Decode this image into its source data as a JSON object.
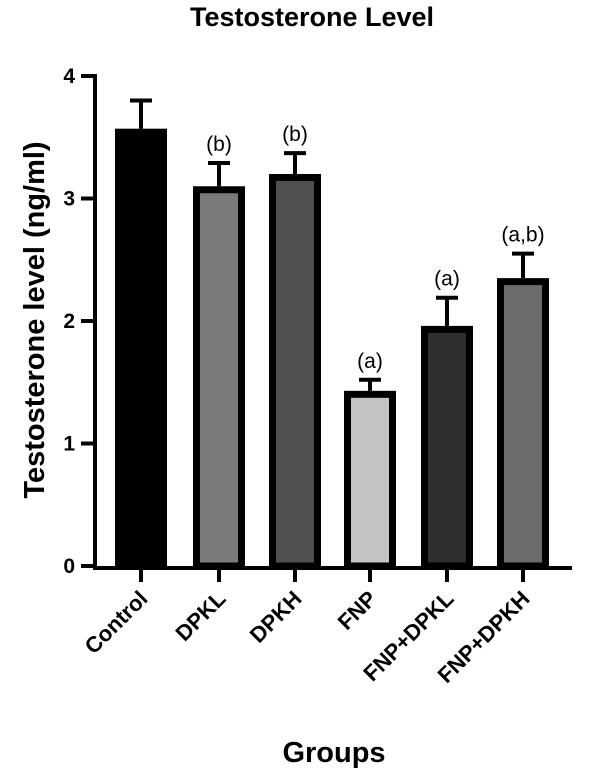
{
  "chart_data": {
    "type": "bar",
    "title": "Testosterone Level",
    "xlabel": "Groups",
    "ylabel": "Testosterone level (ng/ml)",
    "categories": [
      "Control",
      "DPKL",
      "DPKH",
      "FNP",
      "FNP+DPKL",
      "FNP+DPKH"
    ],
    "values": [
      3.57,
      3.1,
      3.2,
      1.43,
      1.96,
      2.35
    ],
    "errors": [
      0.23,
      0.19,
      0.17,
      0.09,
      0.23,
      0.2
    ],
    "annotations": [
      "",
      "(b)",
      "(b)",
      "(a)",
      "(a)",
      "(a,b)"
    ],
    "colors": [
      "#000000",
      "#7a7a7a",
      "#505050",
      "#c4c4c4",
      "#2e2e2e",
      "#6c6c6c"
    ],
    "ylim": [
      0,
      4
    ],
    "yticks": [
      "0",
      "1",
      "2",
      "3",
      "4"
    ],
    "grid": false,
    "legend": "none"
  }
}
